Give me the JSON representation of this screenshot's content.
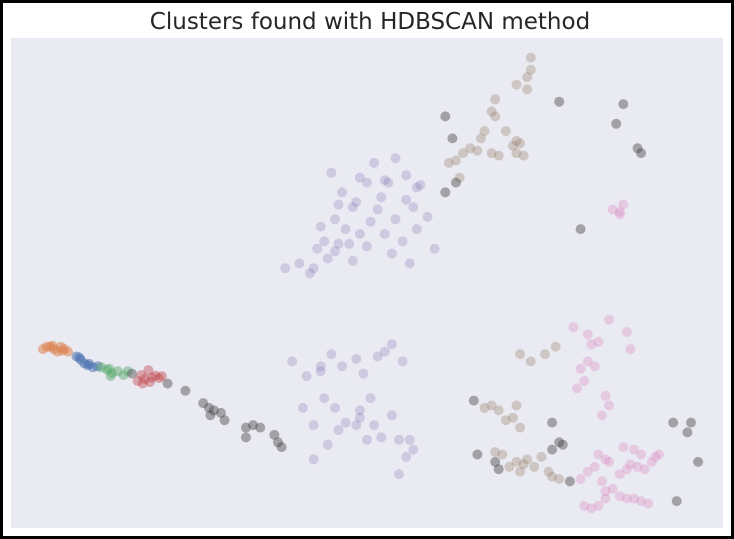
{
  "chart_data": {
    "type": "scatter",
    "title": "Clusters found with HDBSCAN method",
    "xlabel": "",
    "ylabel": "",
    "grid": false,
    "legend": false,
    "axes_visible": false,
    "background_color": "#eaeaf2",
    "xlim": [
      0,
      100
    ],
    "ylim": [
      0,
      100
    ],
    "series": [
      {
        "color": "#dd8452",
        "opacity": 0.55,
        "points": [
          [
            4.5,
            36.5
          ],
          [
            5.0,
            37.0
          ],
          [
            5.5,
            37.0
          ],
          [
            6.0,
            36.5
          ],
          [
            6.5,
            36.0
          ],
          [
            7.0,
            37.0
          ],
          [
            7.5,
            36.5
          ],
          [
            8.0,
            36.0
          ],
          [
            5.8,
            37.2
          ],
          [
            7.2,
            36.2
          ]
        ]
      },
      {
        "color": "#4c72b0",
        "opacity": 0.55,
        "points": [
          [
            9.2,
            35.0
          ],
          [
            9.8,
            34.3
          ],
          [
            10.3,
            33.6
          ],
          [
            10.8,
            33.2
          ],
          [
            11.5,
            32.8
          ],
          [
            12.2,
            33.0
          ],
          [
            9.6,
            34.8
          ],
          [
            11.0,
            33.5
          ]
        ]
      },
      {
        "color": "#55a868",
        "opacity": 0.45,
        "points": [
          [
            12.7,
            32.8
          ],
          [
            13.5,
            32.3
          ],
          [
            14.2,
            31.6
          ],
          [
            15.0,
            32.0
          ],
          [
            15.8,
            31.2
          ],
          [
            16.4,
            32.0
          ],
          [
            14.0,
            31.0
          ],
          [
            13.8,
            32.5
          ]
        ]
      },
      {
        "color": "#c44e52",
        "opacity": 0.45,
        "points": [
          [
            17.8,
            30.0
          ],
          [
            18.3,
            31.2
          ],
          [
            18.8,
            30.4
          ],
          [
            19.3,
            32.2
          ],
          [
            19.8,
            30.7
          ],
          [
            20.3,
            31.1
          ],
          [
            20.8,
            30.6
          ],
          [
            18.5,
            29.5
          ],
          [
            19.5,
            29.8
          ],
          [
            21.2,
            31.0
          ]
        ]
      },
      {
        "color": "#8172b3",
        "opacity": 0.28,
        "points": [
          [
            38.5,
            53.0
          ],
          [
            40.5,
            54.0
          ],
          [
            42.0,
            52.0
          ],
          [
            43.0,
            57.0
          ],
          [
            44.5,
            55.0
          ],
          [
            46.0,
            58.0
          ],
          [
            47.0,
            61.0
          ],
          [
            48.0,
            65.5
          ],
          [
            45.5,
            63.0
          ],
          [
            49.0,
            60.0
          ],
          [
            50.5,
            62.5
          ],
          [
            51.5,
            65.0
          ],
          [
            52.5,
            60.0
          ],
          [
            53.5,
            56.0
          ],
          [
            55.0,
            58.5
          ],
          [
            56.0,
            54.0
          ],
          [
            57.0,
            61.0
          ],
          [
            58.5,
            63.5
          ],
          [
            59.5,
            57.0
          ],
          [
            55.5,
            67.0
          ],
          [
            52.0,
            67.5
          ],
          [
            49.0,
            71.5
          ],
          [
            46.5,
            68.5
          ],
          [
            45.0,
            72.5
          ],
          [
            51.0,
            74.5
          ],
          [
            50.0,
            70.5
          ],
          [
            53.0,
            70.5
          ],
          [
            55.5,
            72.0
          ],
          [
            57.5,
            70.0
          ],
          [
            48.0,
            54.5
          ],
          [
            50.0,
            57.5
          ],
          [
            43.5,
            61.5
          ],
          [
            42.5,
            53.0
          ],
          [
            45.5,
            56.5
          ],
          [
            54.0,
            63.0
          ],
          [
            56.5,
            65.5
          ],
          [
            47.5,
            58.0
          ],
          [
            44.0,
            58.5
          ],
          [
            52.5,
            71.0
          ],
          [
            46.0,
            66.0
          ],
          [
            48.5,
            66.5
          ],
          [
            54.0,
            75.5
          ],
          [
            57.0,
            69.5
          ],
          [
            39.5,
            34.0
          ],
          [
            41.5,
            31.0
          ],
          [
            43.5,
            33.0
          ],
          [
            45.0,
            35.5
          ],
          [
            46.5,
            33.0
          ],
          [
            48.5,
            34.5
          ],
          [
            49.5,
            31.5
          ],
          [
            51.5,
            35.0
          ],
          [
            52.5,
            36.0
          ],
          [
            53.5,
            37.5
          ],
          [
            55.0,
            34.0
          ],
          [
            50.5,
            26.5
          ],
          [
            49.0,
            24.0
          ],
          [
            47.0,
            21.5
          ],
          [
            45.5,
            24.5
          ],
          [
            44.0,
            26.5
          ],
          [
            42.5,
            21.0
          ],
          [
            41.0,
            24.5
          ],
          [
            48.5,
            21.0
          ],
          [
            51.0,
            21.0
          ],
          [
            52.0,
            18.5
          ],
          [
            54.5,
            18.0
          ],
          [
            56.5,
            16.0
          ],
          [
            53.5,
            23.0
          ],
          [
            56.0,
            18.0
          ],
          [
            44.5,
            17.0
          ],
          [
            42.5,
            14.0
          ],
          [
            46.0,
            20.0
          ],
          [
            50.0,
            18.0
          ],
          [
            55.5,
            14.5
          ],
          [
            54.5,
            11.0
          ],
          [
            49.0,
            22.5
          ],
          [
            43.5,
            32.0
          ]
        ]
      },
      {
        "color": "#937860",
        "opacity": 0.32,
        "points": [
          [
            71.0,
            90.5
          ],
          [
            72.5,
            92.0
          ],
          [
            73.0,
            93.5
          ],
          [
            72.5,
            89.5
          ],
          [
            73.0,
            96.0
          ],
          [
            67.5,
            85.0
          ],
          [
            68.0,
            87.5
          ],
          [
            66.0,
            79.5
          ],
          [
            66.5,
            81.0
          ],
          [
            68.0,
            84.0
          ],
          [
            69.5,
            81.0
          ],
          [
            70.5,
            78.0
          ],
          [
            71.0,
            79.0
          ],
          [
            71.5,
            78.5
          ],
          [
            62.5,
            75.0
          ],
          [
            63.5,
            76.5
          ],
          [
            64.5,
            77.5
          ],
          [
            65.5,
            77.0
          ],
          [
            63.0,
            71.5
          ],
          [
            61.5,
            74.5
          ],
          [
            67.5,
            76.5
          ],
          [
            68.5,
            76.0
          ],
          [
            71.0,
            76.5
          ],
          [
            72.0,
            76.0
          ],
          [
            71.5,
            35.5
          ],
          [
            75.0,
            35.5
          ],
          [
            76.5,
            37.0
          ],
          [
            73.0,
            34.0
          ],
          [
            71.0,
            25.0
          ],
          [
            68.5,
            24.0
          ],
          [
            67.5,
            25.0
          ],
          [
            66.5,
            24.5
          ],
          [
            69.5,
            22.0
          ],
          [
            70.5,
            22.5
          ],
          [
            71.5,
            20.5
          ],
          [
            68.0,
            15.5
          ],
          [
            69.0,
            15.0
          ],
          [
            70.0,
            12.5
          ],
          [
            71.0,
            13.5
          ],
          [
            72.0,
            13.0
          ],
          [
            73.5,
            12.5
          ],
          [
            71.5,
            11.5
          ],
          [
            74.5,
            14.5
          ],
          [
            75.5,
            11.5
          ],
          [
            76.0,
            10.5
          ],
          [
            77.0,
            10.0
          ],
          [
            72.5,
            14.0
          ]
        ]
      },
      {
        "color": "#da8bc3",
        "opacity": 0.35,
        "points": [
          [
            84.5,
            65.0
          ],
          [
            85.5,
            64.0
          ],
          [
            86.0,
            66.0
          ],
          [
            85.5,
            64.5
          ],
          [
            79.0,
            41.0
          ],
          [
            81.0,
            39.5
          ],
          [
            81.5,
            37.5
          ],
          [
            82.5,
            38.0
          ],
          [
            84.0,
            42.5
          ],
          [
            86.5,
            40.0
          ],
          [
            87.0,
            36.5
          ],
          [
            81.0,
            34.0
          ],
          [
            82.0,
            33.0
          ],
          [
            80.0,
            32.5
          ],
          [
            83.5,
            27.0
          ],
          [
            84.0,
            25.0
          ],
          [
            83.0,
            23.0
          ],
          [
            80.5,
            30.0
          ],
          [
            79.5,
            28.5
          ],
          [
            82.5,
            15.0
          ],
          [
            83.5,
            14.0
          ],
          [
            84.0,
            13.5
          ],
          [
            82.0,
            12.5
          ],
          [
            81.0,
            11.5
          ],
          [
            80.0,
            10.0
          ],
          [
            83.0,
            9.5
          ],
          [
            85.5,
            11.0
          ],
          [
            86.5,
            12.0
          ],
          [
            87.0,
            13.0
          ],
          [
            88.0,
            12.5
          ],
          [
            89.0,
            12.0
          ],
          [
            90.0,
            13.5
          ],
          [
            90.5,
            14.5
          ],
          [
            91.0,
            15.0
          ],
          [
            88.5,
            15.0
          ],
          [
            87.5,
            16.0
          ],
          [
            86.0,
            16.5
          ],
          [
            83.5,
            7.5
          ],
          [
            84.5,
            8.0
          ],
          [
            85.5,
            6.5
          ],
          [
            86.5,
            6.0
          ],
          [
            87.5,
            6.0
          ],
          [
            88.5,
            5.5
          ],
          [
            89.5,
            5.0
          ],
          [
            80.5,
            4.5
          ],
          [
            81.5,
            4.0
          ],
          [
            82.5,
            4.5
          ],
          [
            83.5,
            6.0
          ]
        ]
      },
      {
        "color": "#4a4a4a",
        "opacity": 0.45,
        "points": [
          [
            17.0,
            31.5
          ],
          [
            22.0,
            29.5
          ],
          [
            24.5,
            28.0
          ],
          [
            27.0,
            25.5
          ],
          [
            27.8,
            24.5
          ],
          [
            28.5,
            24.0
          ],
          [
            29.5,
            23.5
          ],
          [
            28.0,
            23.0
          ],
          [
            30.0,
            22.0
          ],
          [
            33.0,
            20.5
          ],
          [
            34.0,
            21.0
          ],
          [
            35.0,
            20.5
          ],
          [
            33.0,
            18.5
          ],
          [
            37.0,
            19.0
          ],
          [
            37.5,
            17.5
          ],
          [
            38.0,
            16.5
          ],
          [
            61.0,
            84.0
          ],
          [
            62.0,
            79.5
          ],
          [
            61.0,
            68.5
          ],
          [
            62.5,
            70.5
          ],
          [
            77.0,
            87.0
          ],
          [
            86.0,
            86.5
          ],
          [
            85.0,
            82.5
          ],
          [
            88.0,
            77.5
          ],
          [
            88.5,
            76.5
          ],
          [
            80.0,
            61.0
          ],
          [
            65.0,
            26.0
          ],
          [
            76.0,
            21.5
          ],
          [
            77.0,
            17.5
          ],
          [
            77.5,
            17.0
          ],
          [
            76.0,
            16.0
          ],
          [
            68.0,
            13.5
          ],
          [
            68.5,
            12.0
          ],
          [
            65.5,
            15.0
          ],
          [
            78.5,
            9.5
          ],
          [
            93.0,
            21.5
          ],
          [
            95.5,
            21.5
          ],
          [
            95.0,
            19.5
          ],
          [
            96.5,
            13.5
          ],
          [
            93.5,
            5.5
          ]
        ]
      }
    ]
  }
}
